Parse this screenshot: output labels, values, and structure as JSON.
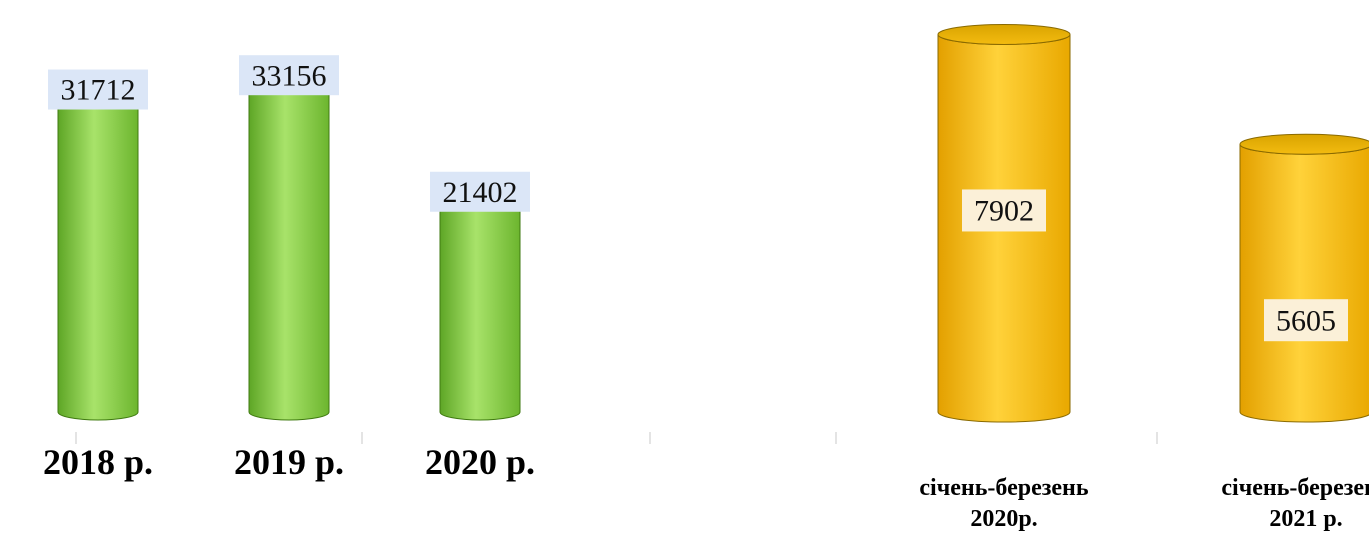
{
  "chart_data": [
    {
      "type": "bar",
      "title": "",
      "xlabel": "",
      "ylabel": "",
      "categories": [
        "2018 р.",
        "2019 р.",
        "2020 р."
      ],
      "values": [
        31712,
        33156,
        21402
      ],
      "value_labels": [
        "31712",
        "33156",
        "21402"
      ],
      "ylim": [
        0,
        36000
      ],
      "grid": false,
      "legend": "none",
      "bar_color": "#8fd44a",
      "bar_edge_color": "#3f7a10",
      "label_bg_color": "#dbe6f7"
    },
    {
      "type": "bar",
      "title": "",
      "xlabel": "",
      "ylabel": "",
      "categories": [
        [
          "січень-березень",
          "2020р."
        ],
        [
          "січень-березень",
          "2021 р."
        ]
      ],
      "values": [
        7902,
        5605
      ],
      "value_labels": [
        "7902",
        "5605"
      ],
      "ylim": [
        0,
        8100
      ],
      "grid": false,
      "legend": "none",
      "bar_color": "#ffc20e",
      "bar_edge_color": "#8a6a00",
      "label_bg_color": "#fbf0d8"
    }
  ]
}
